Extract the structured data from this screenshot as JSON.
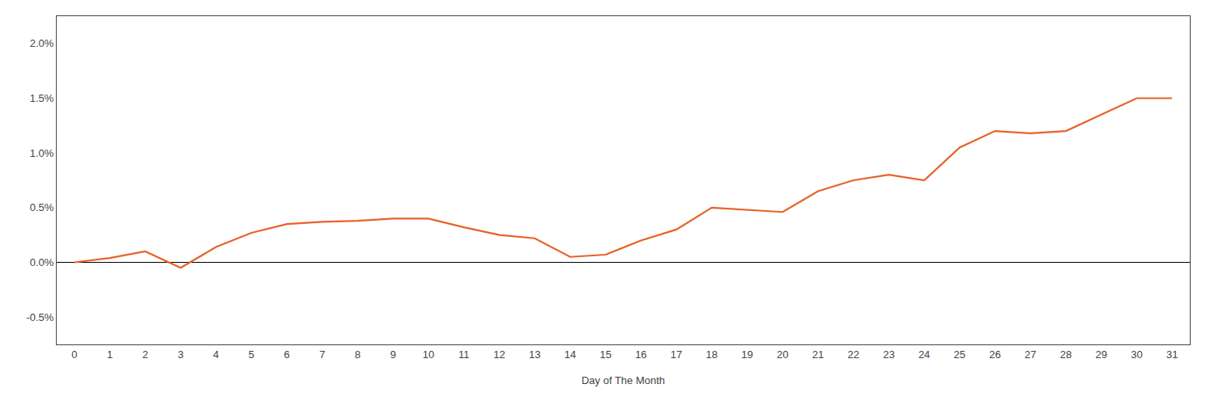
{
  "chart_data": {
    "type": "line",
    "x_label": "Day of The Month",
    "x": [
      0,
      1,
      2,
      3,
      4,
      5,
      6,
      7,
      8,
      9,
      10,
      11,
      12,
      13,
      14,
      15,
      16,
      17,
      18,
      19,
      20,
      21,
      22,
      23,
      24,
      25,
      26,
      27,
      28,
      29,
      30,
      31
    ],
    "values": [
      0.0,
      0.04,
      0.1,
      -0.05,
      0.14,
      0.27,
      0.35,
      0.37,
      0.38,
      0.4,
      0.4,
      0.32,
      0.25,
      0.22,
      0.05,
      0.07,
      0.2,
      0.3,
      0.5,
      0.48,
      0.46,
      0.65,
      0.75,
      0.8,
      0.75,
      1.05,
      1.2,
      1.18,
      1.2,
      1.35,
      1.5,
      1.5
    ],
    "color": "#E8622A",
    "xlim": [
      -0.5,
      31.5
    ],
    "xticks": [
      0,
      1,
      2,
      3,
      4,
      5,
      6,
      7,
      8,
      9,
      10,
      11,
      12,
      13,
      14,
      15,
      16,
      17,
      18,
      19,
      20,
      21,
      22,
      23,
      24,
      25,
      26,
      27,
      28,
      29,
      30,
      31
    ],
    "ylim": [
      -0.75,
      2.25
    ],
    "yticks": [
      {
        "value": 2.0,
        "label": "2.0%"
      },
      {
        "value": 1.5,
        "label": "1.5%"
      },
      {
        "value": 1.0,
        "label": "1.0%"
      },
      {
        "value": 0.5,
        "label": "0.5%"
      },
      {
        "value": 0.0,
        "label": "0.0%"
      },
      {
        "value": -0.5,
        "label": "-0.5%"
      }
    ],
    "grid": false
  }
}
